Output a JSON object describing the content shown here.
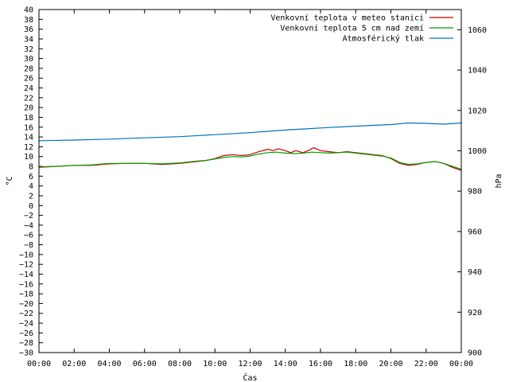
{
  "chart_data": {
    "type": "line",
    "xlabel": "Čas",
    "ylabel": "°C",
    "y2label": "hPa",
    "xlim": [
      0,
      24
    ],
    "ylim": [
      -30,
      40
    ],
    "y2lim": [
      900,
      1070
    ],
    "grid": false,
    "legend_position": "top-right",
    "x_tick_labels": [
      "00:00",
      "02:00",
      "04:00",
      "06:00",
      "08:00",
      "10:00",
      "12:00",
      "14:00",
      "16:00",
      "18:00",
      "20:00",
      "22:00",
      "00:00"
    ],
    "y_tick_values": [
      -30,
      -28,
      -26,
      -24,
      -22,
      -20,
      -18,
      -16,
      -14,
      -12,
      -10,
      -8,
      -6,
      -4,
      -2,
      0,
      2,
      4,
      6,
      8,
      10,
      12,
      14,
      16,
      18,
      20,
      22,
      24,
      26,
      28,
      30,
      32,
      34,
      36,
      38,
      40
    ],
    "y2_tick_values": [
      900,
      920,
      940,
      960,
      980,
      1000,
      1020,
      1040,
      1060
    ],
    "series": [
      {
        "name": "Venkovní teplota v meteo stanici",
        "axis": "left",
        "color": "#cc0000",
        "x": [
          0,
          1,
          2,
          3,
          4,
          5,
          6,
          7,
          8,
          9,
          9.5,
          10,
          10.5,
          11,
          11.5,
          12,
          12.5,
          13,
          13.3,
          13.6,
          14,
          14.3,
          14.6,
          15,
          15.3,
          15.6,
          16,
          16.5,
          17,
          17.5,
          18,
          18.5,
          19,
          19.5,
          20,
          20.5,
          21,
          21.5,
          22,
          22.5,
          23,
          23.5,
          24
        ],
        "y": [
          7.8,
          8.0,
          8.2,
          8.2,
          8.5,
          8.6,
          8.6,
          8.4,
          8.6,
          9.0,
          9.2,
          9.6,
          10.2,
          10.4,
          10.2,
          10.4,
          11.0,
          11.5,
          11.2,
          11.6,
          11.2,
          10.8,
          11.2,
          10.8,
          11.2,
          11.8,
          11.2,
          11.0,
          10.8,
          11.0,
          10.8,
          10.6,
          10.4,
          10.2,
          9.6,
          8.6,
          8.2,
          8.4,
          8.8,
          9.0,
          8.6,
          7.8,
          7.2
        ]
      },
      {
        "name": "Venkovní teplota 5 cm nad zemí",
        "axis": "left",
        "color": "#00a000",
        "x": [
          0,
          1,
          2,
          3,
          4,
          5,
          6,
          7,
          8,
          9,
          9.5,
          10,
          10.5,
          11,
          11.5,
          12,
          12.5,
          13,
          13.5,
          14,
          14.5,
          15,
          15.5,
          16,
          16.5,
          17,
          17.5,
          18,
          18.5,
          19,
          19.5,
          20,
          20.5,
          21,
          21.5,
          22,
          22.5,
          23,
          23.5,
          24
        ],
        "y": [
          7.9,
          8.0,
          8.2,
          8.3,
          8.6,
          8.6,
          8.6,
          8.5,
          8.7,
          9.1,
          9.2,
          9.5,
          9.8,
          10.0,
          9.9,
          10.1,
          10.5,
          10.8,
          10.9,
          10.7,
          10.6,
          10.7,
          10.9,
          10.8,
          10.7,
          10.8,
          10.9,
          10.7,
          10.5,
          10.3,
          10.1,
          9.7,
          8.8,
          8.4,
          8.5,
          8.8,
          9.0,
          8.6,
          8.0,
          7.4
        ]
      },
      {
        "name": "Atmosférický tlak",
        "axis": "right",
        "color": "#0070c0",
        "x": [
          0,
          2,
          4,
          6,
          8,
          10,
          12,
          14,
          16,
          18,
          20,
          21,
          22,
          23,
          24
        ],
        "y": [
          1005,
          1005.3,
          1005.8,
          1006.4,
          1007,
          1008,
          1009,
          1010.3,
          1011.3,
          1012.2,
          1013,
          1013.8,
          1013.6,
          1013.2,
          1013.8
        ]
      }
    ]
  }
}
